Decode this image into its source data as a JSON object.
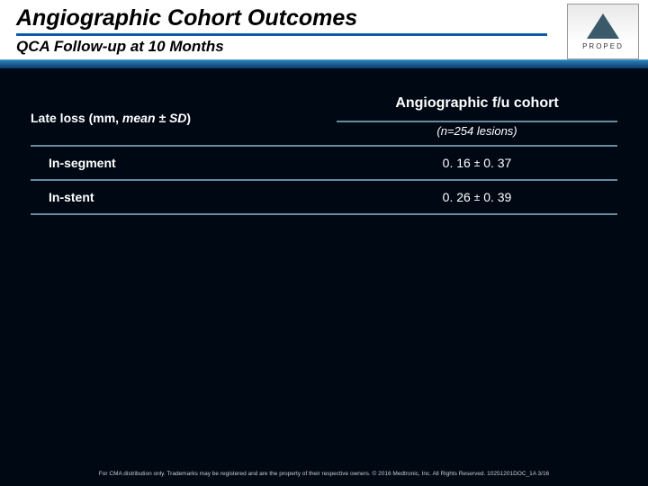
{
  "header": {
    "title": "Angiographic Cohort Outcomes",
    "subtitle": "QCA Follow-up at 10 Months",
    "logo_label": "PROPED"
  },
  "table": {
    "row_header_prefix": "Late loss (mm, ",
    "row_header_mean": "mean ± SD",
    "row_header_suffix": ")",
    "cohort_title": "Angiographic f/u cohort",
    "n_prefix": "(n=",
    "n_value": "254",
    "n_suffix": " lesions)",
    "rows": [
      {
        "label": "In-segment",
        "mean": "0. 16",
        "sd": "0. 37"
      },
      {
        "label": "In-stent",
        "mean": "0. 26",
        "sd": "0. 39"
      }
    ]
  },
  "footer": {
    "text": "For CMA distribution only. Trademarks may be registered and are the property of their respective owners. © 2016 Medtronic, Inc. All Rights Reserved. 10251201DOC_1A 3/16"
  },
  "colors": {
    "background": "#000814",
    "accent_rule": "#6a8aa0",
    "title_underline": "#0d5aa7"
  }
}
